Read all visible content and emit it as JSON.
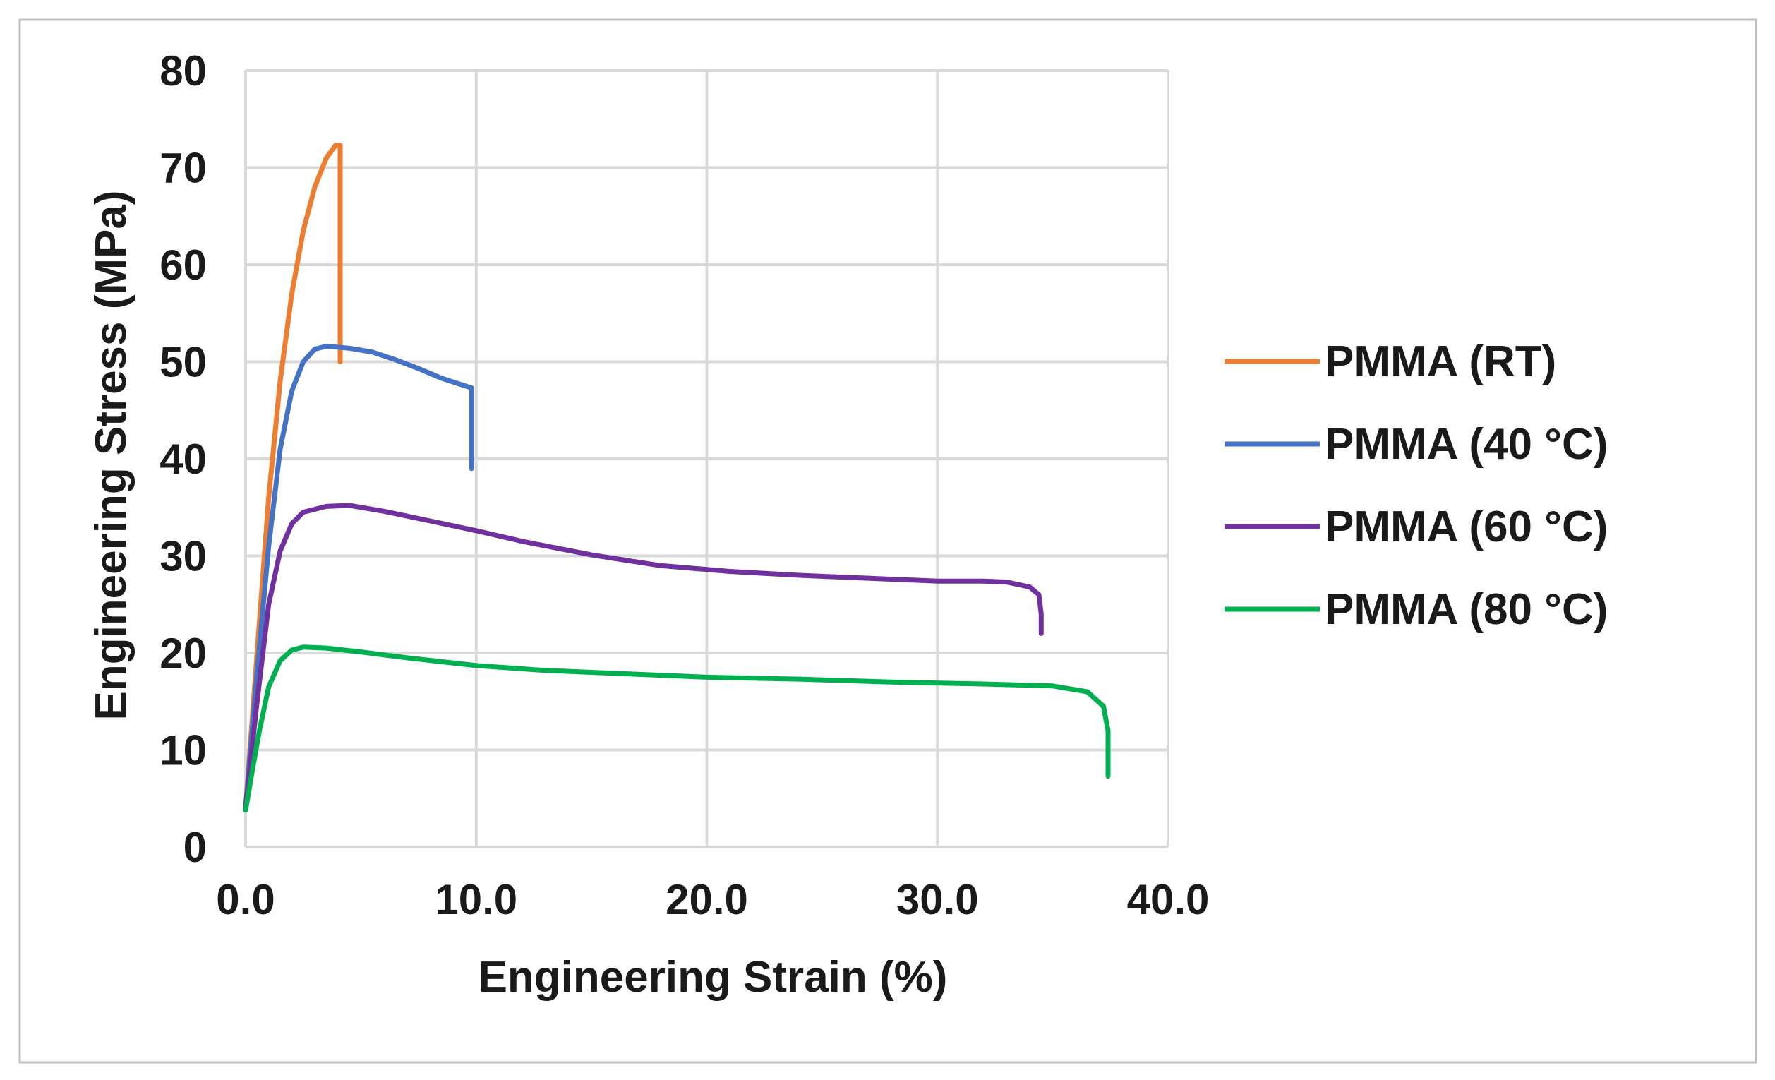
{
  "chart_data": {
    "type": "line",
    "title": "",
    "xlabel": "Engineering Strain (%)",
    "ylabel": "Engineering Stress (MPa)",
    "xlim": [
      0,
      40
    ],
    "ylim": [
      0,
      80
    ],
    "xticks": [
      0,
      10,
      20,
      30,
      40
    ],
    "xtick_labels": [
      "0.0",
      "10.0",
      "20.0",
      "30.0",
      "40.0"
    ],
    "yticks": [
      0,
      10,
      20,
      30,
      40,
      50,
      60,
      70,
      80
    ],
    "ytick_labels": [
      "0",
      "10",
      "20",
      "30",
      "40",
      "50",
      "60",
      "70",
      "80"
    ],
    "grid": true,
    "legend_position": "right",
    "series": [
      {
        "name": "PMMA (RT)",
        "color": "#ED7D31",
        "points": [
          [
            0,
            4
          ],
          [
            0.5,
            20
          ],
          [
            1.0,
            36
          ],
          [
            1.5,
            48
          ],
          [
            2.0,
            57
          ],
          [
            2.5,
            63.5
          ],
          [
            3.0,
            68
          ],
          [
            3.5,
            71
          ],
          [
            3.9,
            72.3
          ],
          [
            4.1,
            72.3
          ],
          [
            4.1,
            60
          ],
          [
            4.1,
            50
          ]
        ]
      },
      {
        "name": "PMMA (40 °C)",
        "color": "#4472C4",
        "points": [
          [
            0,
            4
          ],
          [
            0.5,
            18
          ],
          [
            1.0,
            31
          ],
          [
            1.5,
            41
          ],
          [
            2.0,
            47
          ],
          [
            2.5,
            50
          ],
          [
            3.0,
            51.3
          ],
          [
            3.5,
            51.6
          ],
          [
            4.5,
            51.4
          ],
          [
            5.5,
            51.0
          ],
          [
            6.5,
            50.2
          ],
          [
            7.5,
            49.3
          ],
          [
            8.5,
            48.3
          ],
          [
            9.8,
            47.3
          ],
          [
            9.8,
            43
          ],
          [
            9.8,
            39
          ]
        ]
      },
      {
        "name": "PMMA (60 °C)",
        "color": "#7030A0",
        "points": [
          [
            0,
            4
          ],
          [
            0.5,
            15
          ],
          [
            1.0,
            25
          ],
          [
            1.5,
            30.5
          ],
          [
            2.0,
            33.3
          ],
          [
            2.5,
            34.5
          ],
          [
            3.5,
            35.1
          ],
          [
            4.5,
            35.2
          ],
          [
            6,
            34.6
          ],
          [
            8,
            33.6
          ],
          [
            10,
            32.6
          ],
          [
            12,
            31.5
          ],
          [
            15,
            30.1
          ],
          [
            18,
            29.0
          ],
          [
            21,
            28.4
          ],
          [
            24,
            28.0
          ],
          [
            27,
            27.7
          ],
          [
            30,
            27.4
          ],
          [
            32,
            27.4
          ],
          [
            33,
            27.3
          ],
          [
            34,
            26.8
          ],
          [
            34.4,
            26.0
          ],
          [
            34.5,
            24
          ],
          [
            34.5,
            22
          ]
        ]
      },
      {
        "name": "PMMA (80 °C)",
        "color": "#00B050",
        "points": [
          [
            0,
            3.8
          ],
          [
            0.3,
            8
          ],
          [
            0.6,
            12
          ],
          [
            1.0,
            16.5
          ],
          [
            1.5,
            19.2
          ],
          [
            2.0,
            20.3
          ],
          [
            2.5,
            20.6
          ],
          [
            3.5,
            20.5
          ],
          [
            5,
            20.1
          ],
          [
            7,
            19.5
          ],
          [
            10,
            18.7
          ],
          [
            13,
            18.2
          ],
          [
            16,
            17.9
          ],
          [
            20,
            17.5
          ],
          [
            24,
            17.3
          ],
          [
            28,
            17.0
          ],
          [
            32,
            16.8
          ],
          [
            35,
            16.6
          ],
          [
            36.5,
            16.0
          ],
          [
            37.2,
            14.5
          ],
          [
            37.4,
            12
          ],
          [
            37.4,
            7.3
          ]
        ]
      }
    ]
  }
}
